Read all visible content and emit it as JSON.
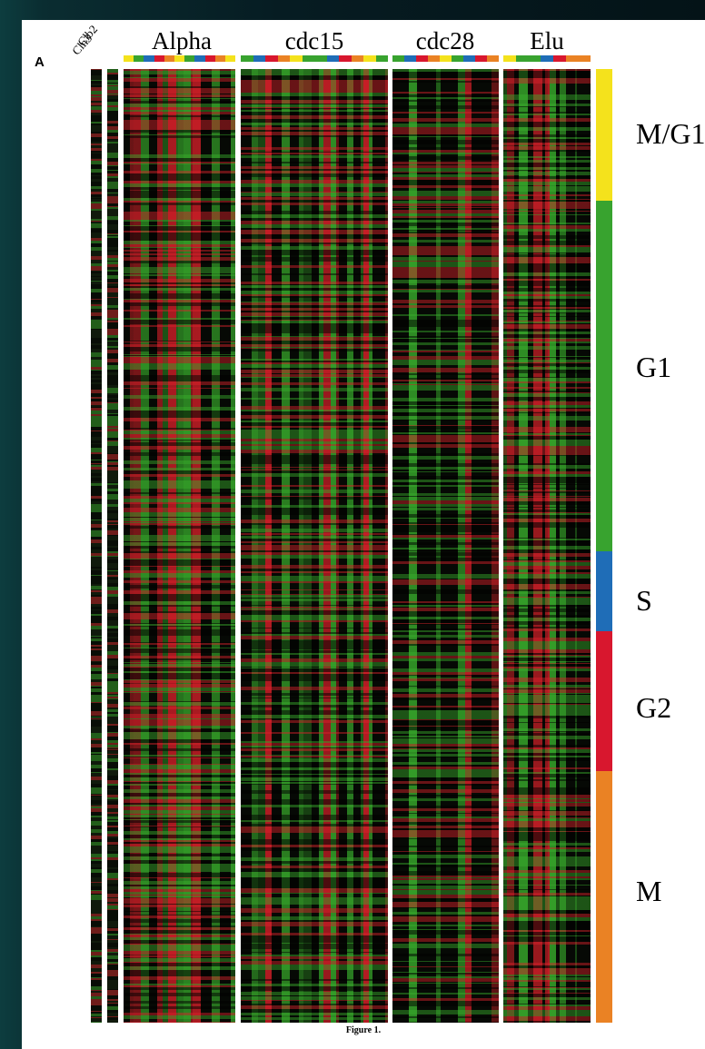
{
  "figure": {
    "panel_letter": "A",
    "caption": "Figure 1.",
    "gene_columns": [
      "Clb2",
      "Cln3"
    ],
    "experiments": [
      {
        "id": "alpha",
        "label": "Alpha"
      },
      {
        "id": "cdc15",
        "label": "cdc15"
      },
      {
        "id": "cdc28",
        "label": "cdc28"
      },
      {
        "id": "elu",
        "label": "Elu"
      }
    ],
    "phases": [
      {
        "label": "M/G1",
        "color": "#f4e21c",
        "fraction": 0.138
      },
      {
        "label": "G1",
        "color": "#38a32f",
        "fraction": 0.368
      },
      {
        "label": "S",
        "color": "#1f6db7",
        "fraction": 0.084
      },
      {
        "label": "G2",
        "color": "#d8172e",
        "fraction": 0.147
      },
      {
        "label": "M",
        "color": "#ea8224",
        "fraction": 0.263
      }
    ],
    "colors": {
      "induced": "#e0202a",
      "repressed": "#39b02c",
      "baseline": "#060905"
    }
  }
}
